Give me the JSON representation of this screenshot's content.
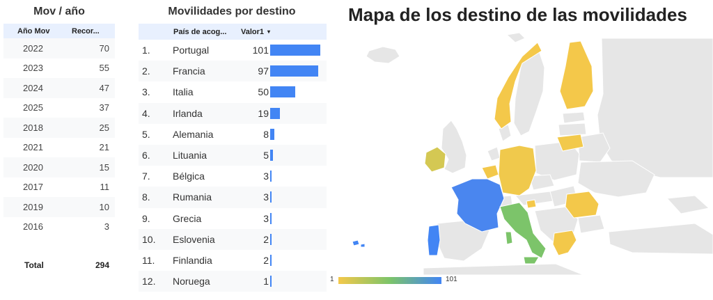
{
  "left": {
    "title": "Mov / año",
    "columns": [
      "Año Mov",
      "Recor..."
    ],
    "rows": [
      {
        "year": "2022",
        "count": "70"
      },
      {
        "year": "2023",
        "count": "55"
      },
      {
        "year": "2024",
        "count": "47"
      },
      {
        "year": "2025",
        "count": "37"
      },
      {
        "year": "2018",
        "count": "25"
      },
      {
        "year": "2021",
        "count": "21"
      },
      {
        "year": "2020",
        "count": "15"
      },
      {
        "year": "2017",
        "count": "11"
      },
      {
        "year": "2019",
        "count": "10"
      },
      {
        "year": "2016",
        "count": "3"
      }
    ],
    "total_label": "Total",
    "total_value": "294"
  },
  "middle": {
    "title": "Movilidades por destino",
    "columns": [
      "País de acog...",
      "Valor1"
    ],
    "sort_icon": "▾",
    "max": 101,
    "rows": [
      {
        "idx": "1.",
        "country": "Portugal",
        "value": 101
      },
      {
        "idx": "2.",
        "country": "Francia",
        "value": 97
      },
      {
        "idx": "3.",
        "country": "Italia",
        "value": 50
      },
      {
        "idx": "4.",
        "country": "Irlanda",
        "value": 19
      },
      {
        "idx": "5.",
        "country": "Alemania",
        "value": 8
      },
      {
        "idx": "6.",
        "country": "Lituania",
        "value": 5
      },
      {
        "idx": "7.",
        "country": "Bélgica",
        "value": 3
      },
      {
        "idx": "8.",
        "country": "Rumania",
        "value": 3
      },
      {
        "idx": "9.",
        "country": "Grecia",
        "value": 3
      },
      {
        "idx": "10.",
        "country": "Eslovenia",
        "value": 2
      },
      {
        "idx": "11.",
        "country": "Finlandia",
        "value": 2
      },
      {
        "idx": "12.",
        "country": "Noruega",
        "value": 1
      }
    ]
  },
  "map": {
    "title": "Mapa de los destino de las movilidades",
    "legend_min": "1",
    "legend_max": "101",
    "colors": {
      "low": "#f4c84a",
      "mid": "#7cc46a",
      "high": "#4285f4",
      "land": "#e6e6e6",
      "border": "#ffffff",
      "sea": "#ffffff"
    }
  }
}
